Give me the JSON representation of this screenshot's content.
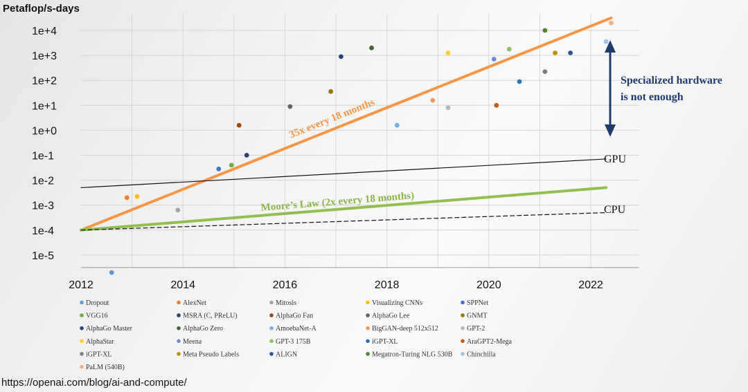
{
  "chart_data": {
    "type": "scatter",
    "ylabel": "Petaflop/s-days",
    "yscale": "log10",
    "ylim_exp": [
      -5.5,
      4.8
    ],
    "xlim": [
      2012,
      2022.95
    ],
    "y_ticks": [
      "1e+4",
      "1e+3",
      "1e+2",
      "1e+1",
      "1e+0",
      "1e-1",
      "1e-2",
      "1e-3",
      "1e-4",
      "1e-5"
    ],
    "y_tick_exps": [
      4,
      3,
      2,
      1,
      0,
      -1,
      -2,
      -3,
      -4,
      -5
    ],
    "x_ticks": [
      "2012",
      "2014",
      "2016",
      "2018",
      "2020",
      "2022"
    ],
    "x_tick_values": [
      2012,
      2014,
      2016,
      2018,
      2020,
      2022
    ],
    "series": [
      {
        "name": "Dropout",
        "color": "#5b9bd5",
        "x": 2012.6,
        "y_exp": -5.7
      },
      {
        "name": "AlexNet",
        "color": "#ed7d31",
        "x": 2012.9,
        "y_exp": -2.7
      },
      {
        "name": "Mitosis",
        "color": "#a5a5a5",
        "x": 2013.9,
        "y_exp": -3.2
      },
      {
        "name": "Visualizing CNNs",
        "color": "#ffc000",
        "x": 2013.1,
        "y_exp": -2.65
      },
      {
        "name": "SPPNet",
        "color": "#4472c4",
        "x": 2014.7,
        "y_exp": -1.55
      },
      {
        "name": "VGG16",
        "color": "#70ad47",
        "x": 2014.95,
        "y_exp": -1.4
      },
      {
        "name": "MSRA (C, PReLU)",
        "color": "#264478",
        "x": 2015.25,
        "y_exp": -1.0
      },
      {
        "name": "AlphaGo Fan",
        "color": "#9e480e",
        "x": 2015.1,
        "y_exp": 0.2
      },
      {
        "name": "AlphaGo Lee",
        "color": "#636363",
        "x": 2016.1,
        "y_exp": 0.95
      },
      {
        "name": "GNMT",
        "color": "#997300",
        "x": 2016.9,
        "y_exp": 1.55
      },
      {
        "name": "AlphaGo Master",
        "color": "#264478",
        "x": 2017.1,
        "y_exp": 2.95
      },
      {
        "name": "AlphaGo Zero",
        "color": "#43682b",
        "x": 2017.7,
        "y_exp": 3.3
      },
      {
        "name": "AmoebaNet-A",
        "color": "#7cafdd",
        "x": 2018.2,
        "y_exp": 0.2
      },
      {
        "name": "BigGAN-deep 512x512",
        "color": "#f1975a",
        "x": 2018.9,
        "y_exp": 1.2
      },
      {
        "name": "GPT-2",
        "color": "#b7b7b7",
        "x": 2019.2,
        "y_exp": 0.9
      },
      {
        "name": "AlphaStar",
        "color": "#ffcd33",
        "x": 2019.2,
        "y_exp": 3.1
      },
      {
        "name": "Meena",
        "color": "#698ed0",
        "x": 2020.1,
        "y_exp": 2.85
      },
      {
        "name": "GPT-3 175B",
        "color": "#8cc168",
        "x": 2020.4,
        "y_exp": 3.25
      },
      {
        "name": "iGPT-XL",
        "color": "#2e75b6",
        "x": 2020.6,
        "y_exp": 1.95
      },
      {
        "name": "AraGPT2-Mega",
        "color": "#c55a11",
        "x": 2020.15,
        "y_exp": 1.0
      },
      {
        "name": "iGPT-XL",
        "color": "#7f7f7f",
        "x": 2021.1,
        "y_exp": 2.35
      },
      {
        "name": "Meta Pseudo Labels",
        "color": "#bf9000",
        "x": 2021.3,
        "y_exp": 3.1
      },
      {
        "name": "ALIGN",
        "color": "#2f5597",
        "x": 2021.6,
        "y_exp": 3.1
      },
      {
        "name": "Megatron-Turing NLG 530B",
        "color": "#548235",
        "x": 2021.1,
        "y_exp": 4.0
      },
      {
        "name": "Chinchilla",
        "color": "#9dc3e6",
        "x": 2022.3,
        "y_exp": 3.55
      },
      {
        "name": "PaLM (540B)",
        "color": "#f4b183",
        "x": 2022.4,
        "y_exp": 4.3
      }
    ],
    "trend_lines": [
      {
        "name": "35x every 18 months",
        "color": "#f79646",
        "width": 4,
        "dash": "",
        "x": [
          2012,
          2022.4
        ],
        "y_exp": [
          -4.0,
          4.5
        ]
      },
      {
        "name": "Moore's Law",
        "color": "#92c050",
        "width": 4,
        "dash": "",
        "x": [
          2012,
          2022.3
        ],
        "y_exp": [
          -4.0,
          -2.3
        ]
      },
      {
        "name": "GPU",
        "color": "#111111",
        "width": 1.2,
        "dash": "",
        "x": [
          2012,
          2022.3
        ],
        "y_exp": [
          -2.3,
          -1.15
        ]
      },
      {
        "name": "CPU",
        "color": "#111111",
        "width": 1.2,
        "dash": "6,4",
        "x": [
          2012,
          2022.3
        ],
        "y_exp": [
          -4.0,
          -3.3
        ]
      }
    ],
    "annotations": {
      "orange_line_label": "35x every 18 months",
      "green_line_label": "Moore’s Law (2x every 18 months)",
      "gpu_label": "GPU",
      "cpu_label": "CPU",
      "arrow_text_line1": "Specialized hardware",
      "arrow_text_line2": "is not enough",
      "arrow_color": "#1f3b6d"
    },
    "legend": [
      [
        "Dropout",
        "AlexNet",
        "Mitosis",
        "Visualizing CNNs",
        "SPPNet"
      ],
      [
        "VGG16",
        "MSRA (C, PReLU)",
        "AlphaGo Fan",
        "AlphaGo Lee",
        "GNMT"
      ],
      [
        "AlphaGo Master",
        "AlphaGo Zero",
        "AmoebaNet-A",
        "BigGAN-deep 512x512",
        "GPT-2"
      ],
      [
        "AlphaStar",
        "Meena",
        "GPT-3 175B",
        "iGPT-XL",
        "AraGPT2-Mega"
      ],
      [
        "iGPT-XL",
        "Meta Pseudo Labels",
        "ALIGN",
        "Megatron-Turing NLG 530B",
        "Chinchilla"
      ],
      [
        "PaLM (540B)"
      ]
    ]
  },
  "source": "https://openai.com/blog/ai-and-compute/"
}
